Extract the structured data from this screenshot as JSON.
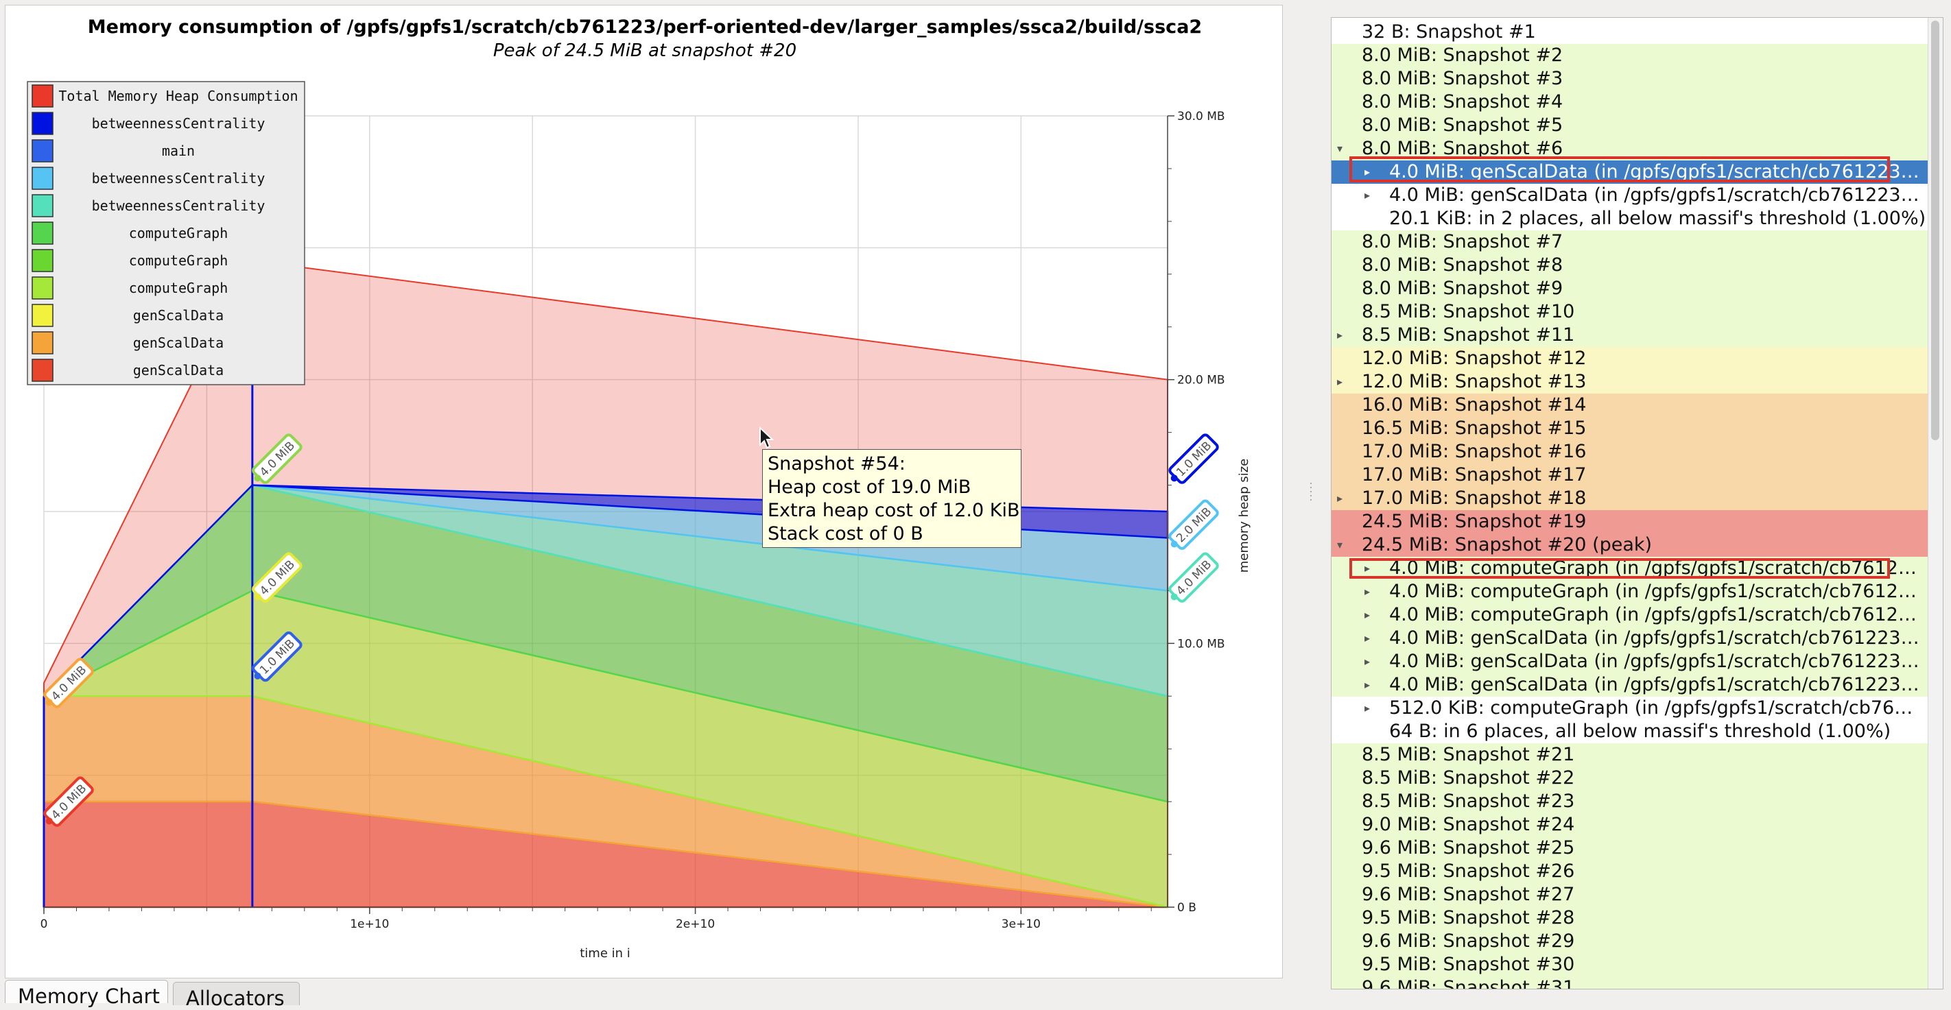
{
  "chart": {
    "title": "Memory consumption of /gpfs/gpfs1/scratch/cb761223/perf-oriented-dev/larger_samples/ssca2/build/ssca2",
    "subtitle": "Peak of 24.5 MiB at snapshot #20",
    "y_label": "memory heap size",
    "x_label": "time in i",
    "x_ticks": [
      "0",
      "1e+10",
      "2e+10",
      "3e+10"
    ],
    "y_ticks": [
      "0 B",
      "10.0 MB",
      "20.0 MB",
      "30.0 MB"
    ],
    "legend": [
      {
        "label": "Total Memory Heap Consumption",
        "color": "#e8392a"
      },
      {
        "label": "betweennessCentrality",
        "color": "#0012e0"
      },
      {
        "label": "main",
        "color": "#2f62e8"
      },
      {
        "label": "betweennessCentrality",
        "color": "#55c4f2"
      },
      {
        "label": "betweennessCentrality",
        "color": "#55e0bc"
      },
      {
        "label": "computeGraph",
        "color": "#55d44e"
      },
      {
        "label": "computeGraph",
        "color": "#6ad630"
      },
      {
        "label": "computeGraph",
        "color": "#a6e83a"
      },
      {
        "label": "genScalData",
        "color": "#f2f23e"
      },
      {
        "label": "genScalData",
        "color": "#f4a438"
      },
      {
        "label": "genScalData",
        "color": "#e8452d"
      }
    ],
    "point_labels": [
      {
        "text": "4.0 MiB",
        "color": "#e8392a"
      },
      {
        "text": "4.0 MiB",
        "color": "#a6e83a"
      },
      {
        "text": "4.0 MiB",
        "color": "#8fd64a"
      },
      {
        "text": "4.0 MiB",
        "color": "#e8e83a"
      },
      {
        "text": "1.0 MiB",
        "color": "#2f62e8"
      },
      {
        "text": "4.0 MiB",
        "color": "#f4a438"
      },
      {
        "text": "4.0 MiB",
        "color": "#e8392a"
      },
      {
        "text": "1.0 MiB",
        "color": "#0012e0"
      },
      {
        "text": "2.0 MiB",
        "color": "#55c4f2"
      },
      {
        "text": "4.0 MiB",
        "color": "#55e0bc"
      }
    ]
  },
  "chart_data": {
    "type": "area",
    "title": "Memory consumption of /gpfs/gpfs1/scratch/cb761223/perf-oriented-dev/larger_samples/ssca2/build/ssca2",
    "subtitle": "Peak of 24.5 MiB at snapshot #20",
    "xlabel": "time in i",
    "ylabel": "memory heap size",
    "xlim": [
      0,
      34500000000
    ],
    "ylim": [
      0,
      30
    ],
    "y_unit": "MB",
    "grid": true,
    "legend_position": "top-left",
    "x": [
      0,
      6400000000,
      34500000000
    ],
    "series": [
      {
        "name": "genScalData",
        "color": "#e8452d",
        "values": [
          4.0,
          4.0,
          0.0
        ]
      },
      {
        "name": "genScalData",
        "color": "#f4a438",
        "values": [
          4.0,
          4.0,
          0.0
        ]
      },
      {
        "name": "genScalData",
        "color": "#f2f23e",
        "values": [
          0.0,
          0.0,
          0.0
        ]
      },
      {
        "name": "computeGraph",
        "color": "#a6e83a",
        "values": [
          0.0,
          4.0,
          4.0
        ]
      },
      {
        "name": "computeGraph",
        "color": "#6ad630",
        "values": [
          0.0,
          0.0,
          0.0
        ]
      },
      {
        "name": "computeGraph",
        "color": "#55d44e",
        "values": [
          0.0,
          4.0,
          4.0
        ]
      },
      {
        "name": "betweennessCentrality",
        "color": "#55e0bc",
        "values": [
          0.0,
          0.0,
          4.0
        ]
      },
      {
        "name": "betweennessCentrality",
        "color": "#55c4f2",
        "values": [
          0.0,
          0.0,
          2.0
        ]
      },
      {
        "name": "main",
        "color": "#2f62e8",
        "values": [
          0.0,
          0.0,
          0.0
        ]
      },
      {
        "name": "betweennessCentrality",
        "color": "#0012e0",
        "values": [
          0.0,
          0.0,
          1.0
        ]
      },
      {
        "name": "Total Memory Heap Consumption",
        "color": "#e8392a",
        "values": [
          8.5,
          24.5,
          20.0
        ]
      }
    ]
  },
  "tooltip": {
    "line1": "Snapshot #54:",
    "line2": "Heap cost of 19.0 MiB",
    "line3": "Extra heap cost of 12.0 KiB",
    "line4": "Stack cost of 0 B"
  },
  "tabs": {
    "memory_chart": "Memory Chart",
    "allocators": "Allocators"
  },
  "tree": {
    "rows": [
      {
        "label": "32 B: Snapshot #1",
        "level": 0,
        "arrow": "",
        "bg": "#ffffff"
      },
      {
        "label": "8.0 MiB: Snapshot #2",
        "level": 0,
        "arrow": "",
        "bg": "#ecfad2"
      },
      {
        "label": "8.0 MiB: Snapshot #3",
        "level": 0,
        "arrow": "",
        "bg": "#ecfad2"
      },
      {
        "label": "8.0 MiB: Snapshot #4",
        "level": 0,
        "arrow": "",
        "bg": "#ecfad2"
      },
      {
        "label": "8.0 MiB: Snapshot #5",
        "level": 0,
        "arrow": "",
        "bg": "#ecfad2"
      },
      {
        "label": "8.0 MiB: Snapshot #6",
        "level": 0,
        "arrow": "▾",
        "bg": "#ecfad2"
      },
      {
        "label": "4.0 MiB: genScalData (in /gpfs/gpfs1/scratch/cb761223…",
        "level": 1,
        "arrow": "▸",
        "bg": "#3f7ec4",
        "selected": true
      },
      {
        "label": "4.0 MiB: genScalData (in /gpfs/gpfs1/scratch/cb761223…",
        "level": 1,
        "arrow": "▸",
        "bg": "#ffffff"
      },
      {
        "label": "20.1 KiB: in 2 places, all below massif's threshold (1.00%)",
        "level": 1,
        "arrow": "",
        "bg": "#ffffff"
      },
      {
        "label": "8.0 MiB: Snapshot #7",
        "level": 0,
        "arrow": "",
        "bg": "#ecfad2"
      },
      {
        "label": "8.0 MiB: Snapshot #8",
        "level": 0,
        "arrow": "",
        "bg": "#ecfad2"
      },
      {
        "label": "8.0 MiB: Snapshot #9",
        "level": 0,
        "arrow": "",
        "bg": "#ecfad2"
      },
      {
        "label": "8.5 MiB: Snapshot #10",
        "level": 0,
        "arrow": "",
        "bg": "#ecfad2"
      },
      {
        "label": "8.5 MiB: Snapshot #11",
        "level": 0,
        "arrow": "▸",
        "bg": "#ecfad2"
      },
      {
        "label": "12.0 MiB: Snapshot #12",
        "level": 0,
        "arrow": "",
        "bg": "#fbf7c4"
      },
      {
        "label": "12.0 MiB: Snapshot #13",
        "level": 0,
        "arrow": "▸",
        "bg": "#fbf7c4"
      },
      {
        "label": "16.0 MiB: Snapshot #14",
        "level": 0,
        "arrow": "",
        "bg": "#f8d7a8"
      },
      {
        "label": "16.5 MiB: Snapshot #15",
        "level": 0,
        "arrow": "",
        "bg": "#f8d7a8"
      },
      {
        "label": "17.0 MiB: Snapshot #16",
        "level": 0,
        "arrow": "",
        "bg": "#f8d7a8"
      },
      {
        "label": "17.0 MiB: Snapshot #17",
        "level": 0,
        "arrow": "",
        "bg": "#f8d7a8"
      },
      {
        "label": "17.0 MiB: Snapshot #18",
        "level": 0,
        "arrow": "▸",
        "bg": "#f8d7a8"
      },
      {
        "label": "24.5 MiB: Snapshot #19",
        "level": 0,
        "arrow": "",
        "bg": "#ef9a92"
      },
      {
        "label": "24.5 MiB: Snapshot #20 (peak)",
        "level": 0,
        "arrow": "▾",
        "bg": "#ef9a92"
      },
      {
        "label": "4.0 MiB: computeGraph (in /gpfs/gpfs1/scratch/cb7612…",
        "level": 1,
        "arrow": "▸",
        "bg": "#ecfad2"
      },
      {
        "label": "4.0 MiB: computeGraph (in /gpfs/gpfs1/scratch/cb7612…",
        "level": 1,
        "arrow": "▸",
        "bg": "#ecfad2"
      },
      {
        "label": "4.0 MiB: computeGraph (in /gpfs/gpfs1/scratch/cb7612…",
        "level": 1,
        "arrow": "▸",
        "bg": "#ecfad2"
      },
      {
        "label": "4.0 MiB: genScalData (in /gpfs/gpfs1/scratch/cb761223…",
        "level": 1,
        "arrow": "▸",
        "bg": "#ecfad2"
      },
      {
        "label": "4.0 MiB: genScalData (in /gpfs/gpfs1/scratch/cb761223…",
        "level": 1,
        "arrow": "▸",
        "bg": "#ecfad2"
      },
      {
        "label": "4.0 MiB: genScalData (in /gpfs/gpfs1/scratch/cb761223…",
        "level": 1,
        "arrow": "▸",
        "bg": "#ecfad2"
      },
      {
        "label": "512.0 KiB: computeGraph (in /gpfs/gpfs1/scratch/cb76…",
        "level": 1,
        "arrow": "▸",
        "bg": "#ffffff"
      },
      {
        "label": "64 B: in 6 places, all below massif's threshold (1.00%)",
        "level": 1,
        "arrow": "",
        "bg": "#ffffff"
      },
      {
        "label": "8.5 MiB: Snapshot #21",
        "level": 0,
        "arrow": "",
        "bg": "#ecfad2"
      },
      {
        "label": "8.5 MiB: Snapshot #22",
        "level": 0,
        "arrow": "",
        "bg": "#ecfad2"
      },
      {
        "label": "8.5 MiB: Snapshot #23",
        "level": 0,
        "arrow": "",
        "bg": "#ecfad2"
      },
      {
        "label": "9.0 MiB: Snapshot #24",
        "level": 0,
        "arrow": "",
        "bg": "#ecfad2"
      },
      {
        "label": "9.6 MiB: Snapshot #25",
        "level": 0,
        "arrow": "",
        "bg": "#ecfad2"
      },
      {
        "label": "9.5 MiB: Snapshot #26",
        "level": 0,
        "arrow": "",
        "bg": "#ecfad2"
      },
      {
        "label": "9.6 MiB: Snapshot #27",
        "level": 0,
        "arrow": "",
        "bg": "#ecfad2"
      },
      {
        "label": "9.5 MiB: Snapshot #28",
        "level": 0,
        "arrow": "",
        "bg": "#ecfad2"
      },
      {
        "label": "9.6 MiB: Snapshot #29",
        "level": 0,
        "arrow": "",
        "bg": "#ecfad2"
      },
      {
        "label": "9.5 MiB: Snapshot #30",
        "level": 0,
        "arrow": "",
        "bg": "#ecfad2"
      },
      {
        "label": "9.6 MiB: Snapshot #31",
        "level": 0,
        "arrow": "",
        "bg": "#ecfad2"
      }
    ]
  }
}
